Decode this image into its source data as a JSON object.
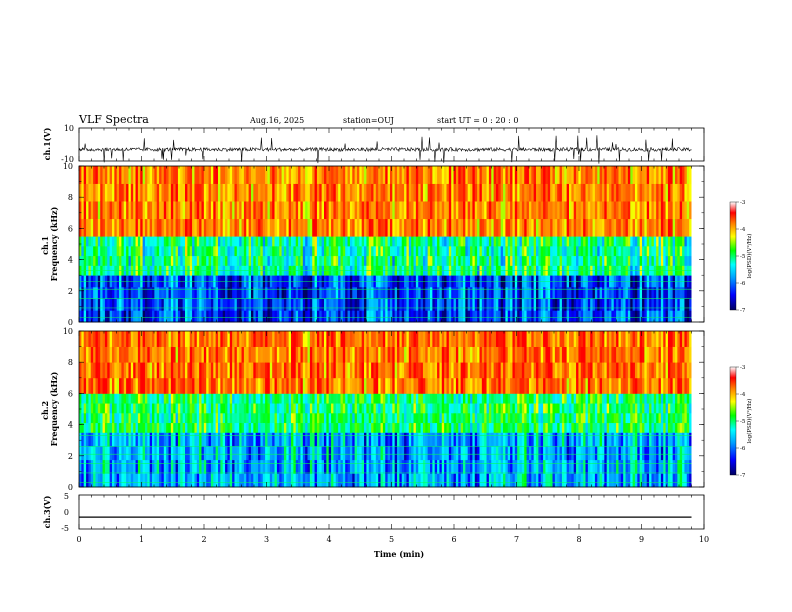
{
  "header": {
    "title": "VLF Spectra",
    "date": "Aug.16, 2025",
    "station": "station=OUJ",
    "start": "start  UT =   0  : 20 : 0"
  },
  "chart_data": [
    {
      "type": "line",
      "ylabel": "ch.1(V)",
      "ylim": [
        -10,
        10
      ],
      "y_tick_labels": [
        "10",
        "-10"
      ],
      "baseline_value": -3,
      "series": [
        {
          "values": "noisy waveform centered near -3 V with spikes to about ±10 V"
        }
      ]
    },
    {
      "type": "heatmap",
      "ylabel": "ch.1\nFrequency (kHz)",
      "ylim": [
        0,
        10
      ],
      "y_tick_labels": [
        "0",
        "2",
        "4",
        "6",
        "8",
        "10"
      ],
      "colorbar": {
        "label": "log(PSD)(V²/Hz)",
        "range": [
          -7,
          -3
        ],
        "tick_labels": [
          "-3",
          "-4",
          "-5",
          "-6",
          "-7"
        ]
      },
      "bands": [
        {
          "from_khz": 0,
          "to_khz": 3,
          "level": -6.4
        },
        {
          "from_khz": 3,
          "to_khz": 5.5,
          "level": -5.2
        },
        {
          "from_khz": 5.5,
          "to_khz": 10,
          "level": -3.7
        }
      ]
    },
    {
      "type": "heatmap",
      "ylabel": "ch.2\nFrequency (kHz)",
      "ylim": [
        0,
        10
      ],
      "y_tick_labels": [
        "0",
        "2",
        "4",
        "6",
        "8",
        "10"
      ],
      "colorbar": {
        "label": "log(PSD)(V²/Hz)",
        "range": [
          -7,
          -3
        ],
        "tick_labels": [
          "-3",
          "-4",
          "-5",
          "-6",
          "-7"
        ]
      },
      "bands": [
        {
          "from_khz": 0,
          "to_khz": 3.5,
          "level": -5.9
        },
        {
          "from_khz": 3.5,
          "to_khz": 6,
          "level": -5.0
        },
        {
          "from_khz": 6,
          "to_khz": 10,
          "level": -3.6
        }
      ]
    },
    {
      "type": "line",
      "ylabel": "ch.3(V)",
      "ylim": [
        -5,
        5
      ],
      "y_tick_labels": [
        "5",
        "0",
        "-5"
      ],
      "series": [
        {
          "x": [
            0,
            9.8
          ],
          "values": [
            -1.5,
            -1.5
          ]
        }
      ]
    }
  ],
  "xaxis": {
    "label": "Time (min)",
    "xlim": [
      0,
      10
    ],
    "tick_labels": [
      "0",
      "1",
      "2",
      "3",
      "4",
      "5",
      "6",
      "7",
      "8",
      "9",
      "10"
    ],
    "data_end": 9.8
  },
  "colors": {
    "colormap": [
      "#000060",
      "#0000ff",
      "#00a0ff",
      "#00ffff",
      "#00ff00",
      "#ffff00",
      "#ff8000",
      "#ff0000",
      "#ffffff"
    ],
    "line": "#000000"
  }
}
